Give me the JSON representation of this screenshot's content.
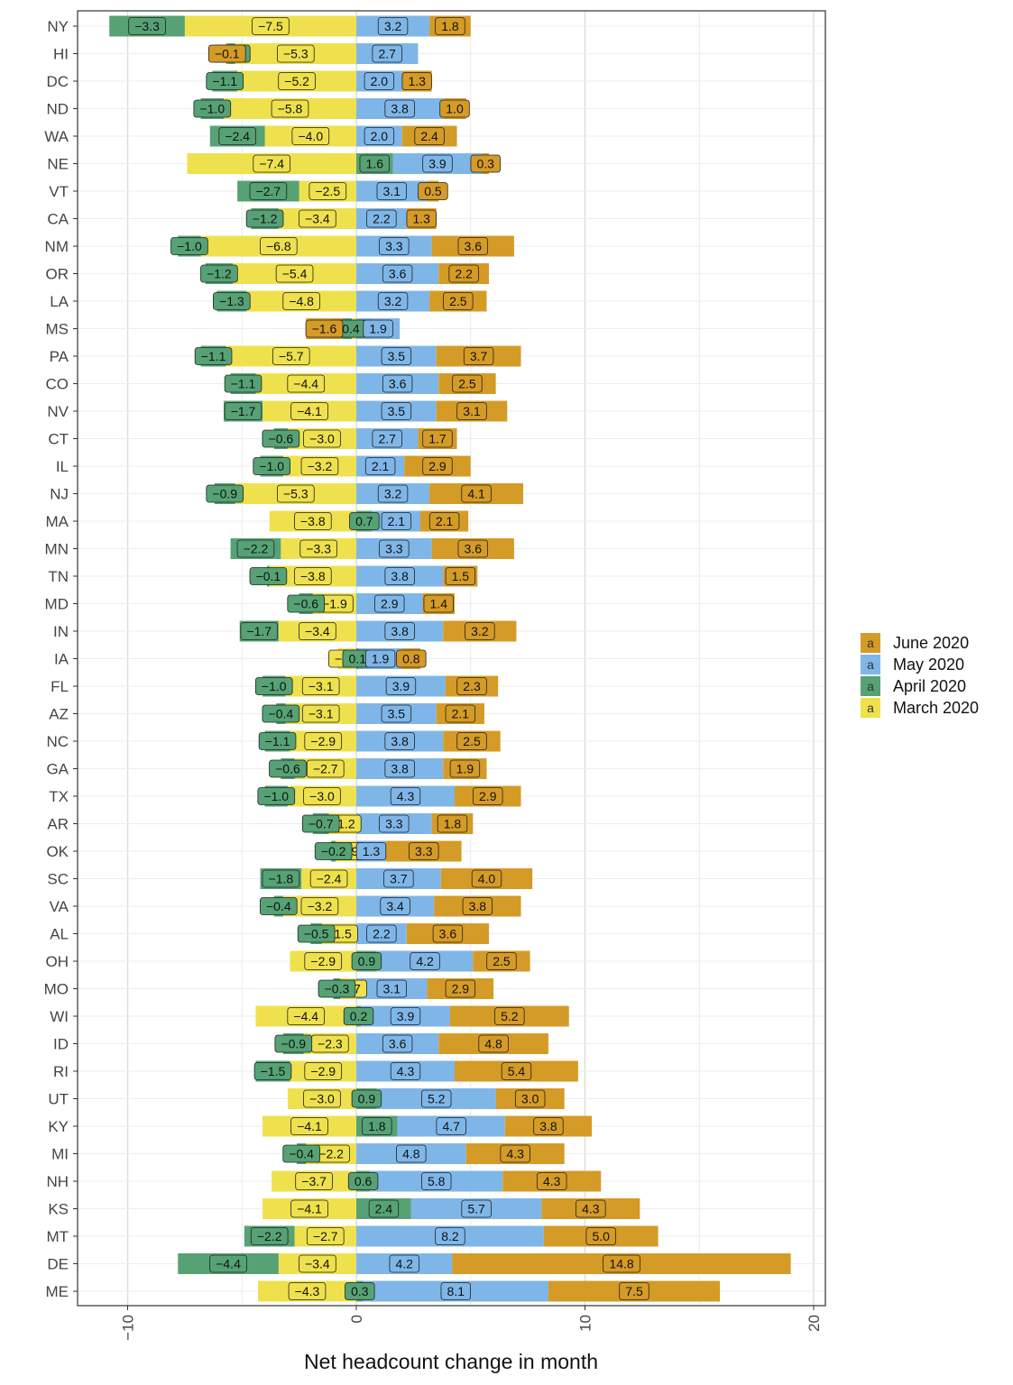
{
  "chart_data": {
    "type": "bar",
    "stacking": "diverging",
    "xlabel": "Net headcount change in month",
    "xlim": [
      -12,
      20.5
    ],
    "xticks": [
      -10,
      0,
      10,
      20
    ],
    "xtick_labels": [
      "-10",
      "0",
      "10",
      "20"
    ],
    "grid": true,
    "legend": {
      "position": "right",
      "key_glyph": "a",
      "entries": [
        "June 2020",
        "May 2020",
        "April 2020",
        "March 2020"
      ]
    },
    "colors": {
      "March 2020": "#efe14d",
      "April 2020": "#56a275",
      "May 2020": "#7fb6e8",
      "June 2020": "#d59b27"
    },
    "categories": [
      "NY",
      "HI",
      "DC",
      "ND",
      "WA",
      "NE",
      "VT",
      "CA",
      "NM",
      "OR",
      "LA",
      "MS",
      "PA",
      "CO",
      "NV",
      "CT",
      "IL",
      "NJ",
      "MA",
      "MN",
      "TN",
      "MD",
      "IN",
      "IA",
      "FL",
      "AZ",
      "NC",
      "GA",
      "TX",
      "AR",
      "OK",
      "SC",
      "VA",
      "AL",
      "OH",
      "MO",
      "WI",
      "ID",
      "RI",
      "UT",
      "KY",
      "MI",
      "NH",
      "KS",
      "MT",
      "DE",
      "ME"
    ],
    "series": [
      {
        "name": "March 2020",
        "values": [
          -7.5,
          -5.3,
          -5.2,
          -5.8,
          -4.0,
          -7.4,
          -2.5,
          -3.4,
          -6.8,
          -5.4,
          -4.8,
          -0.2,
          -5.7,
          -4.4,
          -4.1,
          -3.0,
          -3.2,
          -5.3,
          -3.8,
          -3.3,
          -3.8,
          -1.9,
          -3.4,
          -0.8,
          -3.1,
          -3.1,
          -2.9,
          -2.7,
          -3.0,
          -1.2,
          -0.9,
          -2.4,
          -3.2,
          -1.5,
          -2.9,
          -0.7,
          -4.4,
          -2.3,
          -2.9,
          -3.0,
          -4.1,
          -2.2,
          -3.7,
          -4.1,
          -2.7,
          -3.4,
          -4.3
        ]
      },
      {
        "name": "April 2020",
        "values": [
          -3.3,
          -0.3,
          -1.1,
          -1.0,
          -2.4,
          1.6,
          -2.7,
          -1.2,
          -1.0,
          -1.2,
          -1.3,
          -0.4,
          -1.1,
          -1.1,
          -1.7,
          -0.6,
          -1.0,
          -0.9,
          0.7,
          -2.2,
          -0.1,
          -0.6,
          -1.7,
          0.1,
          -1.0,
          -0.4,
          -1.1,
          -0.6,
          -1.0,
          -0.7,
          -0.2,
          -1.8,
          -0.4,
          -0.5,
          0.9,
          -0.3,
          0.2,
          -0.9,
          -1.5,
          0.9,
          1.8,
          -0.4,
          0.6,
          2.4,
          -2.2,
          -4.4,
          0.3
        ]
      },
      {
        "name": "May 2020",
        "values": [
          3.2,
          2.7,
          2.0,
          3.8,
          2.0,
          3.9,
          3.1,
          2.2,
          3.3,
          3.6,
          3.2,
          1.9,
          3.5,
          3.6,
          3.5,
          2.7,
          2.1,
          3.2,
          2.1,
          3.3,
          3.8,
          2.9,
          3.8,
          1.9,
          3.9,
          3.5,
          3.8,
          3.8,
          4.3,
          3.3,
          1.3,
          3.7,
          3.4,
          2.2,
          4.2,
          3.1,
          3.9,
          3.6,
          4.3,
          5.2,
          4.7,
          4.8,
          5.8,
          5.7,
          8.2,
          4.2,
          8.1
        ]
      },
      {
        "name": "June 2020",
        "values": [
          1.8,
          -0.1,
          1.3,
          1.0,
          2.4,
          0.3,
          0.5,
          1.3,
          3.6,
          2.2,
          2.5,
          -1.6,
          3.7,
          2.5,
          3.1,
          1.7,
          2.9,
          4.1,
          2.1,
          3.6,
          1.5,
          1.4,
          3.2,
          0.8,
          2.3,
          2.1,
          2.5,
          1.9,
          2.9,
          1.8,
          3.3,
          4.0,
          3.8,
          3.6,
          2.5,
          2.9,
          5.2,
          4.8,
          5.4,
          3.0,
          3.8,
          4.3,
          4.3,
          4.3,
          5.0,
          14.8,
          7.5
        ]
      }
    ]
  }
}
